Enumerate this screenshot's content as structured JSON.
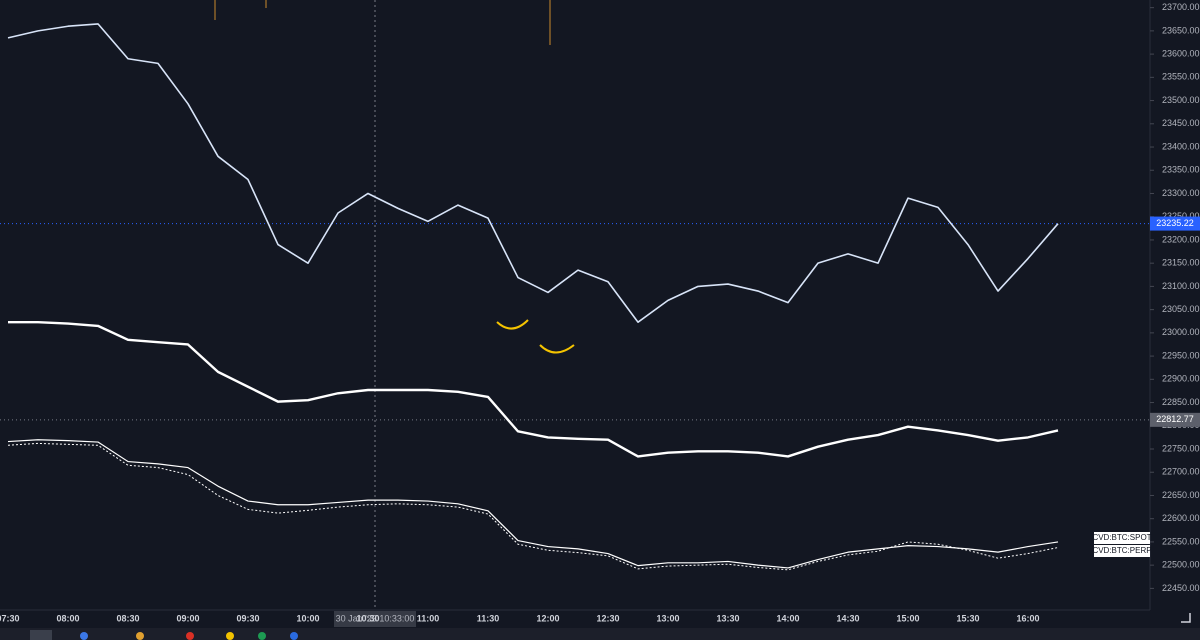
{
  "chart_data": {
    "type": "line",
    "x": [
      "07:30",
      null,
      "08:00",
      null,
      "08:30",
      null,
      "09:00",
      null,
      "09:30",
      null,
      "10:00",
      null,
      "10:30",
      null,
      "11:00",
      null,
      "11:30",
      null,
      "12:00",
      null,
      "12:30",
      null,
      "13:00",
      null,
      "13:30",
      null,
      "14:00",
      null,
      "14:30",
      null,
      "15:00",
      null,
      "15:30",
      null,
      "16:00",
      null
    ],
    "series": [
      {
        "color": "#d8e4f8",
        "width": 1.6,
        "values": [
          23635,
          23650,
          23660,
          23665,
          23590,
          23580,
          23493,
          23380,
          23330,
          23190,
          23150,
          23258,
          23300,
          23268,
          23240,
          23275,
          23247,
          23119,
          23087,
          23135,
          23110,
          23023,
          23070,
          23100,
          23105,
          23090,
          23065,
          23150,
          23170,
          23150,
          23290,
          23270,
          23190,
          23090,
          23160,
          23235
        ]
      },
      {
        "color": "#ffffff",
        "width": 2.4,
        "values": [
          23023,
          23023,
          23020,
          23015,
          22985,
          22980,
          22975,
          22916,
          22884,
          22852,
          22855,
          22870,
          22877,
          22877,
          22877,
          22873,
          22862,
          22788,
          22775,
          22772,
          22770,
          22734,
          22742,
          22745,
          22745,
          22742,
          22734,
          22755,
          22770,
          22780,
          22798,
          22790,
          22780,
          22768,
          22775,
          22790
        ]
      },
      {
        "name": "CVD:BTC:SPOT",
        "color": "#ffffff",
        "width": 1.2,
        "dash": false,
        "values": [
          22766,
          22770,
          22768,
          22765,
          22723,
          22718,
          22710,
          22670,
          22638,
          22630,
          22630,
          22635,
          22640,
          22640,
          22638,
          22632,
          22617,
          22553,
          22540,
          22535,
          22525,
          22499,
          22505,
          22505,
          22508,
          22500,
          22494,
          22512,
          22528,
          22535,
          22542,
          22540,
          22535,
          22528,
          22540,
          22550
        ]
      },
      {
        "name": "CVD:BTC:PERP",
        "color": "#ffffff",
        "width": 1,
        "dash": true,
        "values": [
          22758,
          22762,
          22760,
          22758,
          22715,
          22710,
          22695,
          22650,
          22620,
          22612,
          22618,
          22625,
          22630,
          22632,
          22630,
          22625,
          22610,
          22545,
          22532,
          22527,
          22520,
          22492,
          22498,
          22500,
          22502,
          22495,
          22490,
          22508,
          22522,
          22530,
          22550,
          22545,
          22532,
          22515,
          22525,
          22538
        ]
      }
    ],
    "ylim": [
      22425,
      23710
    ],
    "yticks": [
      {
        "value": 22450,
        "label": "22450.00"
      },
      {
        "value": 22500,
        "label": "22500.00"
      },
      {
        "value": 22550,
        "label": "22550.00"
      },
      {
        "value": 22600,
        "label": "22600.00"
      },
      {
        "value": 22650,
        "label": "22650.00"
      },
      {
        "value": 22700,
        "label": "22700.00"
      },
      {
        "value": 22750,
        "label": "22750.00"
      },
      {
        "value": 22800,
        "label": "22800.00"
      },
      {
        "value": 22850,
        "label": "22850.00"
      },
      {
        "value": 22900,
        "label": "22900.00"
      },
      {
        "value": 22950,
        "label": "22950.00"
      },
      {
        "value": 23000,
        "label": "23000.00"
      },
      {
        "value": 23050,
        "label": "23050.00"
      },
      {
        "value": 23100,
        "label": "23100.00"
      },
      {
        "value": 23150,
        "label": "23150.00"
      },
      {
        "value": 23200,
        "label": "23200.00"
      },
      {
        "value": 23250,
        "label": "23250.00"
      },
      {
        "value": 23300,
        "label": "23300.00"
      },
      {
        "value": 23350,
        "label": "23350.00"
      },
      {
        "value": 23400,
        "label": "23400.00"
      },
      {
        "value": 23450,
        "label": "23450.00"
      },
      {
        "value": 23500,
        "label": "23500.00"
      },
      {
        "value": 23550,
        "label": "23550.00"
      },
      {
        "value": 23600,
        "label": "23600.00"
      },
      {
        "value": 23650,
        "label": "23650.00"
      },
      {
        "value": 23700,
        "label": "23700.00"
      }
    ],
    "grid": false,
    "last_price": 23235.22,
    "marker_price": 22812.77,
    "crosshair_label": "30 Jan '23  10:33:00"
  }
}
